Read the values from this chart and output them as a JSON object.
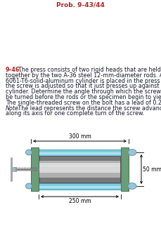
{
  "title_text": "Prob. 9-43/44",
  "title_color": "#b22222",
  "problem_number": "9–46.",
  "problem_number_color": "#b22222",
  "bg_color": "#ffffff",
  "text_color": "#1a1a2e",
  "font_size_body": 5.8,
  "font_size_title": 6.5,
  "rod_color": "#7ecde0",
  "rod_border_color": "#4a9ab0",
  "rod_highlight": "#c0eaf7",
  "cylinder_light": "#d8d8d8",
  "cylinder_mid": "#b0b0b0",
  "cylinder_dark": "#787878",
  "plate_color": "#6b9e78",
  "plate_dark": "#4a7a58",
  "bolt_color": "#9ac4d8",
  "bolt_dark": "#5a8fa8",
  "screw_color": "#909090",
  "handle_color": "#aaaaaa",
  "dim_300": "300 mm",
  "dim_50": "50 mm",
  "dim_250": "250 mm"
}
